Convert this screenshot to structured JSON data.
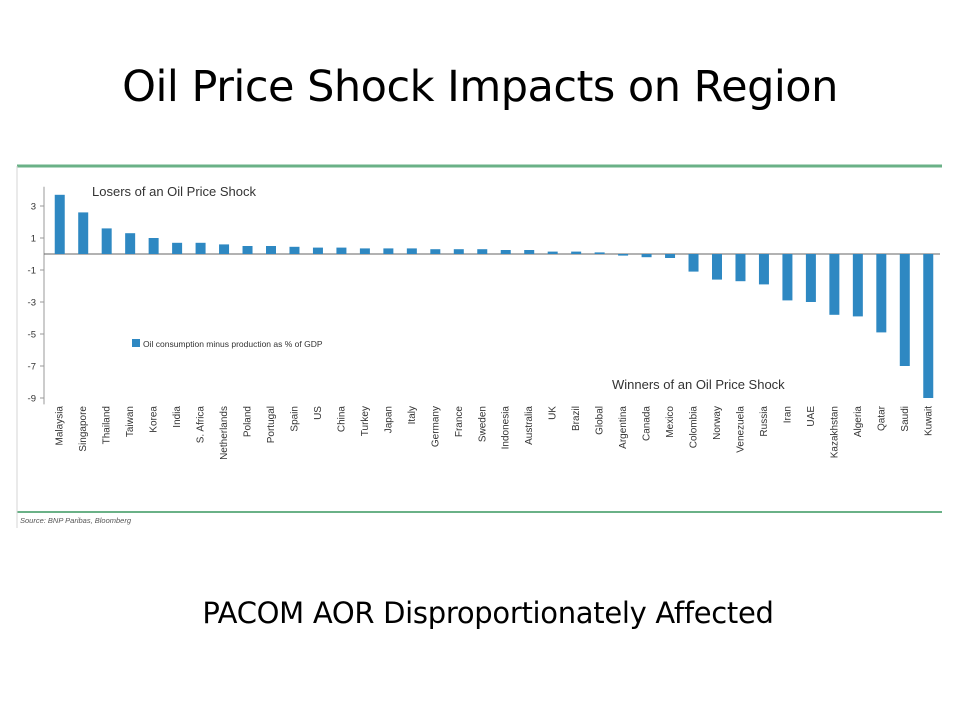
{
  "slide": {
    "title": "Oil Price Shock Impacts on Region",
    "subtitle": "PACOM AOR Disproportionately Affected"
  },
  "chart_data": {
    "type": "bar",
    "categories": [
      "Malaysia",
      "Singapore",
      "Thailand",
      "Taiwan",
      "Korea",
      "India",
      "S. Africa",
      "Netherlands",
      "Poland",
      "Portugal",
      "Spain",
      "US",
      "China",
      "Turkey",
      "Japan",
      "Italy",
      "Germany",
      "France",
      "Sweden",
      "Indonesia",
      "Australia",
      "UK",
      "Brazil",
      "Global",
      "Argentina",
      "Canada",
      "Mexico",
      "Colombia",
      "Norway",
      "Venezuela",
      "Russia",
      "Iran",
      "UAE",
      "Kazakhstan",
      "Algeria",
      "Qatar",
      "Saudi",
      "Kuwait"
    ],
    "series": [
      {
        "name": "Oil consumption minus production as % of GDP",
        "values": [
          3.7,
          2.6,
          1.6,
          1.3,
          1.0,
          0.7,
          0.7,
          0.6,
          0.5,
          0.5,
          0.45,
          0.4,
          0.4,
          0.35,
          0.35,
          0.35,
          0.3,
          0.3,
          0.3,
          0.25,
          0.25,
          0.15,
          0.15,
          0.1,
          -0.1,
          -0.2,
          -0.25,
          -1.1,
          -1.6,
          -1.7,
          -1.9,
          -2.9,
          -3.0,
          -3.8,
          -3.9,
          -4.9,
          -7.0,
          -9.0
        ],
        "color": "#2e88c2"
      }
    ],
    "yticks": [
      3,
      1,
      -1,
      -3,
      -5,
      -7,
      -9
    ],
    "ylim": [
      -9.4,
      4.2
    ],
    "annotations": {
      "losers": "Losers of an Oil Price Shock",
      "winners": "Winners of an Oil Price Shock"
    },
    "legend_label": "Oil consumption minus production as % of GDP",
    "source": "Source: BNP Paribas, Bloomberg",
    "frame_color": "#6ab187"
  }
}
